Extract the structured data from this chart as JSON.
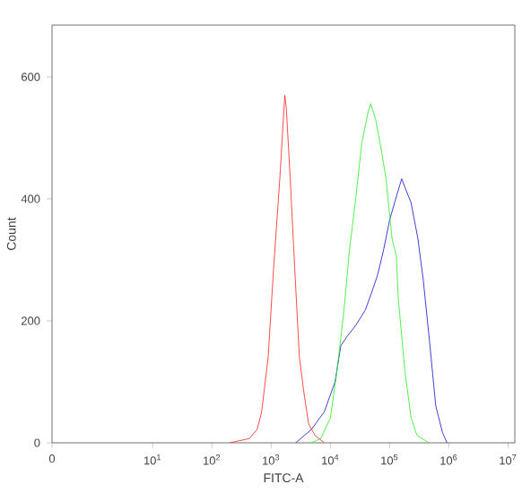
{
  "chart_data": {
    "type": "line",
    "xlabel": "FITC-A",
    "ylabel": "Count",
    "log": "x",
    "grid": false,
    "marker": "none",
    "line_style": "solid",
    "xlim": [
      0.2,
      13000000
    ],
    "ylim": [
      0,
      685
    ],
    "xticks": [
      {
        "value": 0.2,
        "label": "0"
      },
      {
        "value": 10,
        "label": "10$^{1}$"
      },
      {
        "value": 100,
        "label": "10$^{2}$"
      },
      {
        "value": 1000,
        "label": "10$^{3}$"
      },
      {
        "value": 10000,
        "label": "10$^{4}$"
      },
      {
        "value": 100000,
        "label": "10$^{5}$"
      },
      {
        "value": 1000000,
        "label": "10$^{6}$"
      },
      {
        "value": 10000000,
        "label": "10$^{7}$"
      }
    ],
    "yticks": [
      0,
      200,
      400,
      600
    ],
    "series": [
      {
        "color": "#ff2020",
        "x": [
          200,
          430,
          580,
          690,
          890,
          1100,
          1400,
          1700,
          1800,
          2100,
          2500,
          3000,
          3600,
          4300,
          5500,
          7900
        ],
        "values": [
          0,
          7,
          22,
          50,
          140,
          286,
          433,
          570,
          550,
          433,
          286,
          140,
          80,
          31,
          12,
          0
        ]
      },
      {
        "color": "#22ee22",
        "x": [
          4800,
          6900,
          10000,
          13000,
          17000,
          21000,
          27000,
          34000,
          43000,
          48000,
          58000,
          69000,
          87000,
          110000,
          130000,
          140000,
          180000,
          230000,
          290000,
          460000
        ],
        "values": [
          0,
          7,
          41,
          120,
          218,
          316,
          404,
          492,
          541,
          556,
          531,
          492,
          433,
          335,
          306,
          237,
          120,
          41,
          12,
          0
        ]
      },
      {
        "color": "#1010cc",
        "x": [
          2600,
          4800,
          7900,
          12000,
          15000,
          19000,
          27000,
          39000,
          50000,
          63000,
          79000,
          100000,
          130000,
          160000,
          190000,
          230000,
          300000,
          370000,
          480000,
          600000,
          780000,
          930000
        ],
        "values": [
          0,
          22,
          51,
          100,
          159,
          174,
          193,
          218,
          247,
          276,
          316,
          365,
          404,
          433,
          414,
          394,
          335,
          267,
          159,
          61,
          17,
          0
        ]
      }
    ]
  }
}
